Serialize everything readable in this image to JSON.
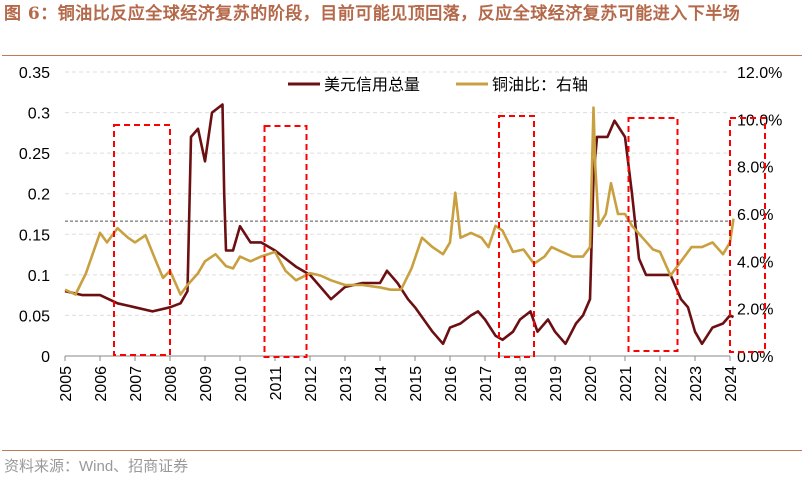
{
  "title": "图 6：铜油比反应全球经济复苏的阶段，目前可能见顶回落，反应全球经济复苏可能进入下半场",
  "source": "资料来源：Wind、招商证券",
  "chart_data": {
    "type": "line",
    "title": "",
    "legend": [
      "美元信用总量",
      "铜油比：右轴"
    ],
    "legend_position": "top-center",
    "xlim": [
      2005,
      2024.2
    ],
    "x_ticks": [
      "2005",
      "2006",
      "2007",
      "2008",
      "2009",
      "2010",
      "2011",
      "2012",
      "2013",
      "2014",
      "2015",
      "2016",
      "2017",
      "2018",
      "2019",
      "2020",
      "2021",
      "2022",
      "2023",
      "2024"
    ],
    "y_left": {
      "lim": [
        0,
        0.35
      ],
      "ticks": [
        "0",
        "0.05",
        "0.1",
        "0.15",
        "0.2",
        "0.25",
        "0.3",
        "0.35"
      ]
    },
    "y_right": {
      "lim": [
        0,
        12
      ],
      "ticks": [
        "0.0%",
        "2.0%",
        "4.0%",
        "6.0%",
        "8.0%",
        "10.0%",
        "12.0%"
      ]
    },
    "reference_line_right": 5.7,
    "highlight_periods": [
      [
        2006.4,
        2008.0
      ],
      [
        2010.7,
        2011.9
      ],
      [
        2017.4,
        2018.4
      ],
      [
        2021.1,
        2022.5
      ],
      [
        2024.0,
        2025.0
      ]
    ],
    "series": [
      {
        "name": "美元信用总量",
        "axis": "left",
        "color": "#6b0f12",
        "x": [
          2005,
          2005.5,
          2006,
          2006.5,
          2007,
          2007.5,
          2008,
          2008.3,
          2008.5,
          2008.6,
          2008.8,
          2009,
          2009.2,
          2009.5,
          2009.55,
          2009.6,
          2009.8,
          2010,
          2010.3,
          2010.6,
          2011,
          2011.3,
          2011.6,
          2012,
          2012.3,
          2012.6,
          2013,
          2013.5,
          2014,
          2014.2,
          2014.5,
          2014.8,
          2015,
          2015.5,
          2015.8,
          2016,
          2016.3,
          2016.6,
          2016.8,
          2017,
          2017.3,
          2017.5,
          2017.8,
          2018,
          2018.3,
          2018.5,
          2018.8,
          2019,
          2019.3,
          2019.6,
          2019.8,
          2020,
          2020.1,
          2020.2,
          2020.5,
          2020.7,
          2021,
          2021.2,
          2021.4,
          2021.6,
          2022,
          2022.3,
          2022.6,
          2022.8,
          2023,
          2023.2,
          2023.5,
          2023.8,
          2024,
          2024.1
        ],
        "y": [
          0.08,
          0.075,
          0.075,
          0.065,
          0.06,
          0.055,
          0.06,
          0.065,
          0.08,
          0.27,
          0.28,
          0.24,
          0.3,
          0.31,
          0.2,
          0.13,
          0.13,
          0.16,
          0.14,
          0.14,
          0.13,
          0.12,
          0.11,
          0.1,
          0.085,
          0.07,
          0.085,
          0.09,
          0.09,
          0.105,
          0.09,
          0.07,
          0.06,
          0.03,
          0.015,
          0.035,
          0.04,
          0.05,
          0.055,
          0.045,
          0.025,
          0.02,
          0.03,
          0.045,
          0.055,
          0.03,
          0.045,
          0.03,
          0.015,
          0.04,
          0.05,
          0.07,
          0.22,
          0.27,
          0.27,
          0.29,
          0.27,
          0.2,
          0.12,
          0.1,
          0.1,
          0.1,
          0.07,
          0.06,
          0.03,
          0.015,
          0.035,
          0.04,
          0.05,
          0.048
        ]
      },
      {
        "name": "铜油比：右轴",
        "axis": "right",
        "color": "#c8a040",
        "x": [
          2005,
          2005.3,
          2005.6,
          2006,
          2006.2,
          2006.5,
          2006.8,
          2007,
          2007.3,
          2007.6,
          2007.8,
          2008,
          2008.3,
          2008.5,
          2008.8,
          2009,
          2009.3,
          2009.6,
          2009.8,
          2010,
          2010.3,
          2010.6,
          2011,
          2011.3,
          2011.6,
          2012,
          2012.3,
          2012.6,
          2013,
          2013.5,
          2014,
          2014.3,
          2014.6,
          2014.9,
          2015.2,
          2015.5,
          2015.8,
          2016,
          2016.15,
          2016.3,
          2016.6,
          2016.9,
          2017.1,
          2017.3,
          2017.5,
          2017.8,
          2018.1,
          2018.4,
          2018.7,
          2018.9,
          2019.2,
          2019.5,
          2019.8,
          2020,
          2020.1,
          2020.15,
          2020.25,
          2020.45,
          2020.6,
          2020.8,
          2021,
          2021.2,
          2021.5,
          2021.8,
          2022,
          2022.3,
          2022.6,
          2022.9,
          2023.2,
          2023.5,
          2023.8,
          2024,
          2024.1
        ],
        "y": [
          2.8,
          2.6,
          3.5,
          5.2,
          4.8,
          5.4,
          5.0,
          4.8,
          5.1,
          4.0,
          3.3,
          3.6,
          2.6,
          3.0,
          3.5,
          4.0,
          4.3,
          3.8,
          3.7,
          4.2,
          4.0,
          4.2,
          4.4,
          3.6,
          3.2,
          3.5,
          3.4,
          3.2,
          3.0,
          3.0,
          2.9,
          2.8,
          2.8,
          3.7,
          5.0,
          4.6,
          4.3,
          4.8,
          6.9,
          5.0,
          5.2,
          5.0,
          4.6,
          5.5,
          5.3,
          4.4,
          4.5,
          3.9,
          4.2,
          4.6,
          4.4,
          4.2,
          4.2,
          4.6,
          10.5,
          8.0,
          5.5,
          6.0,
          7.3,
          6.0,
          6.0,
          5.5,
          5.0,
          4.5,
          4.4,
          3.4,
          4.0,
          4.6,
          4.6,
          4.8,
          4.3,
          4.8,
          5.8
        ]
      }
    ]
  }
}
